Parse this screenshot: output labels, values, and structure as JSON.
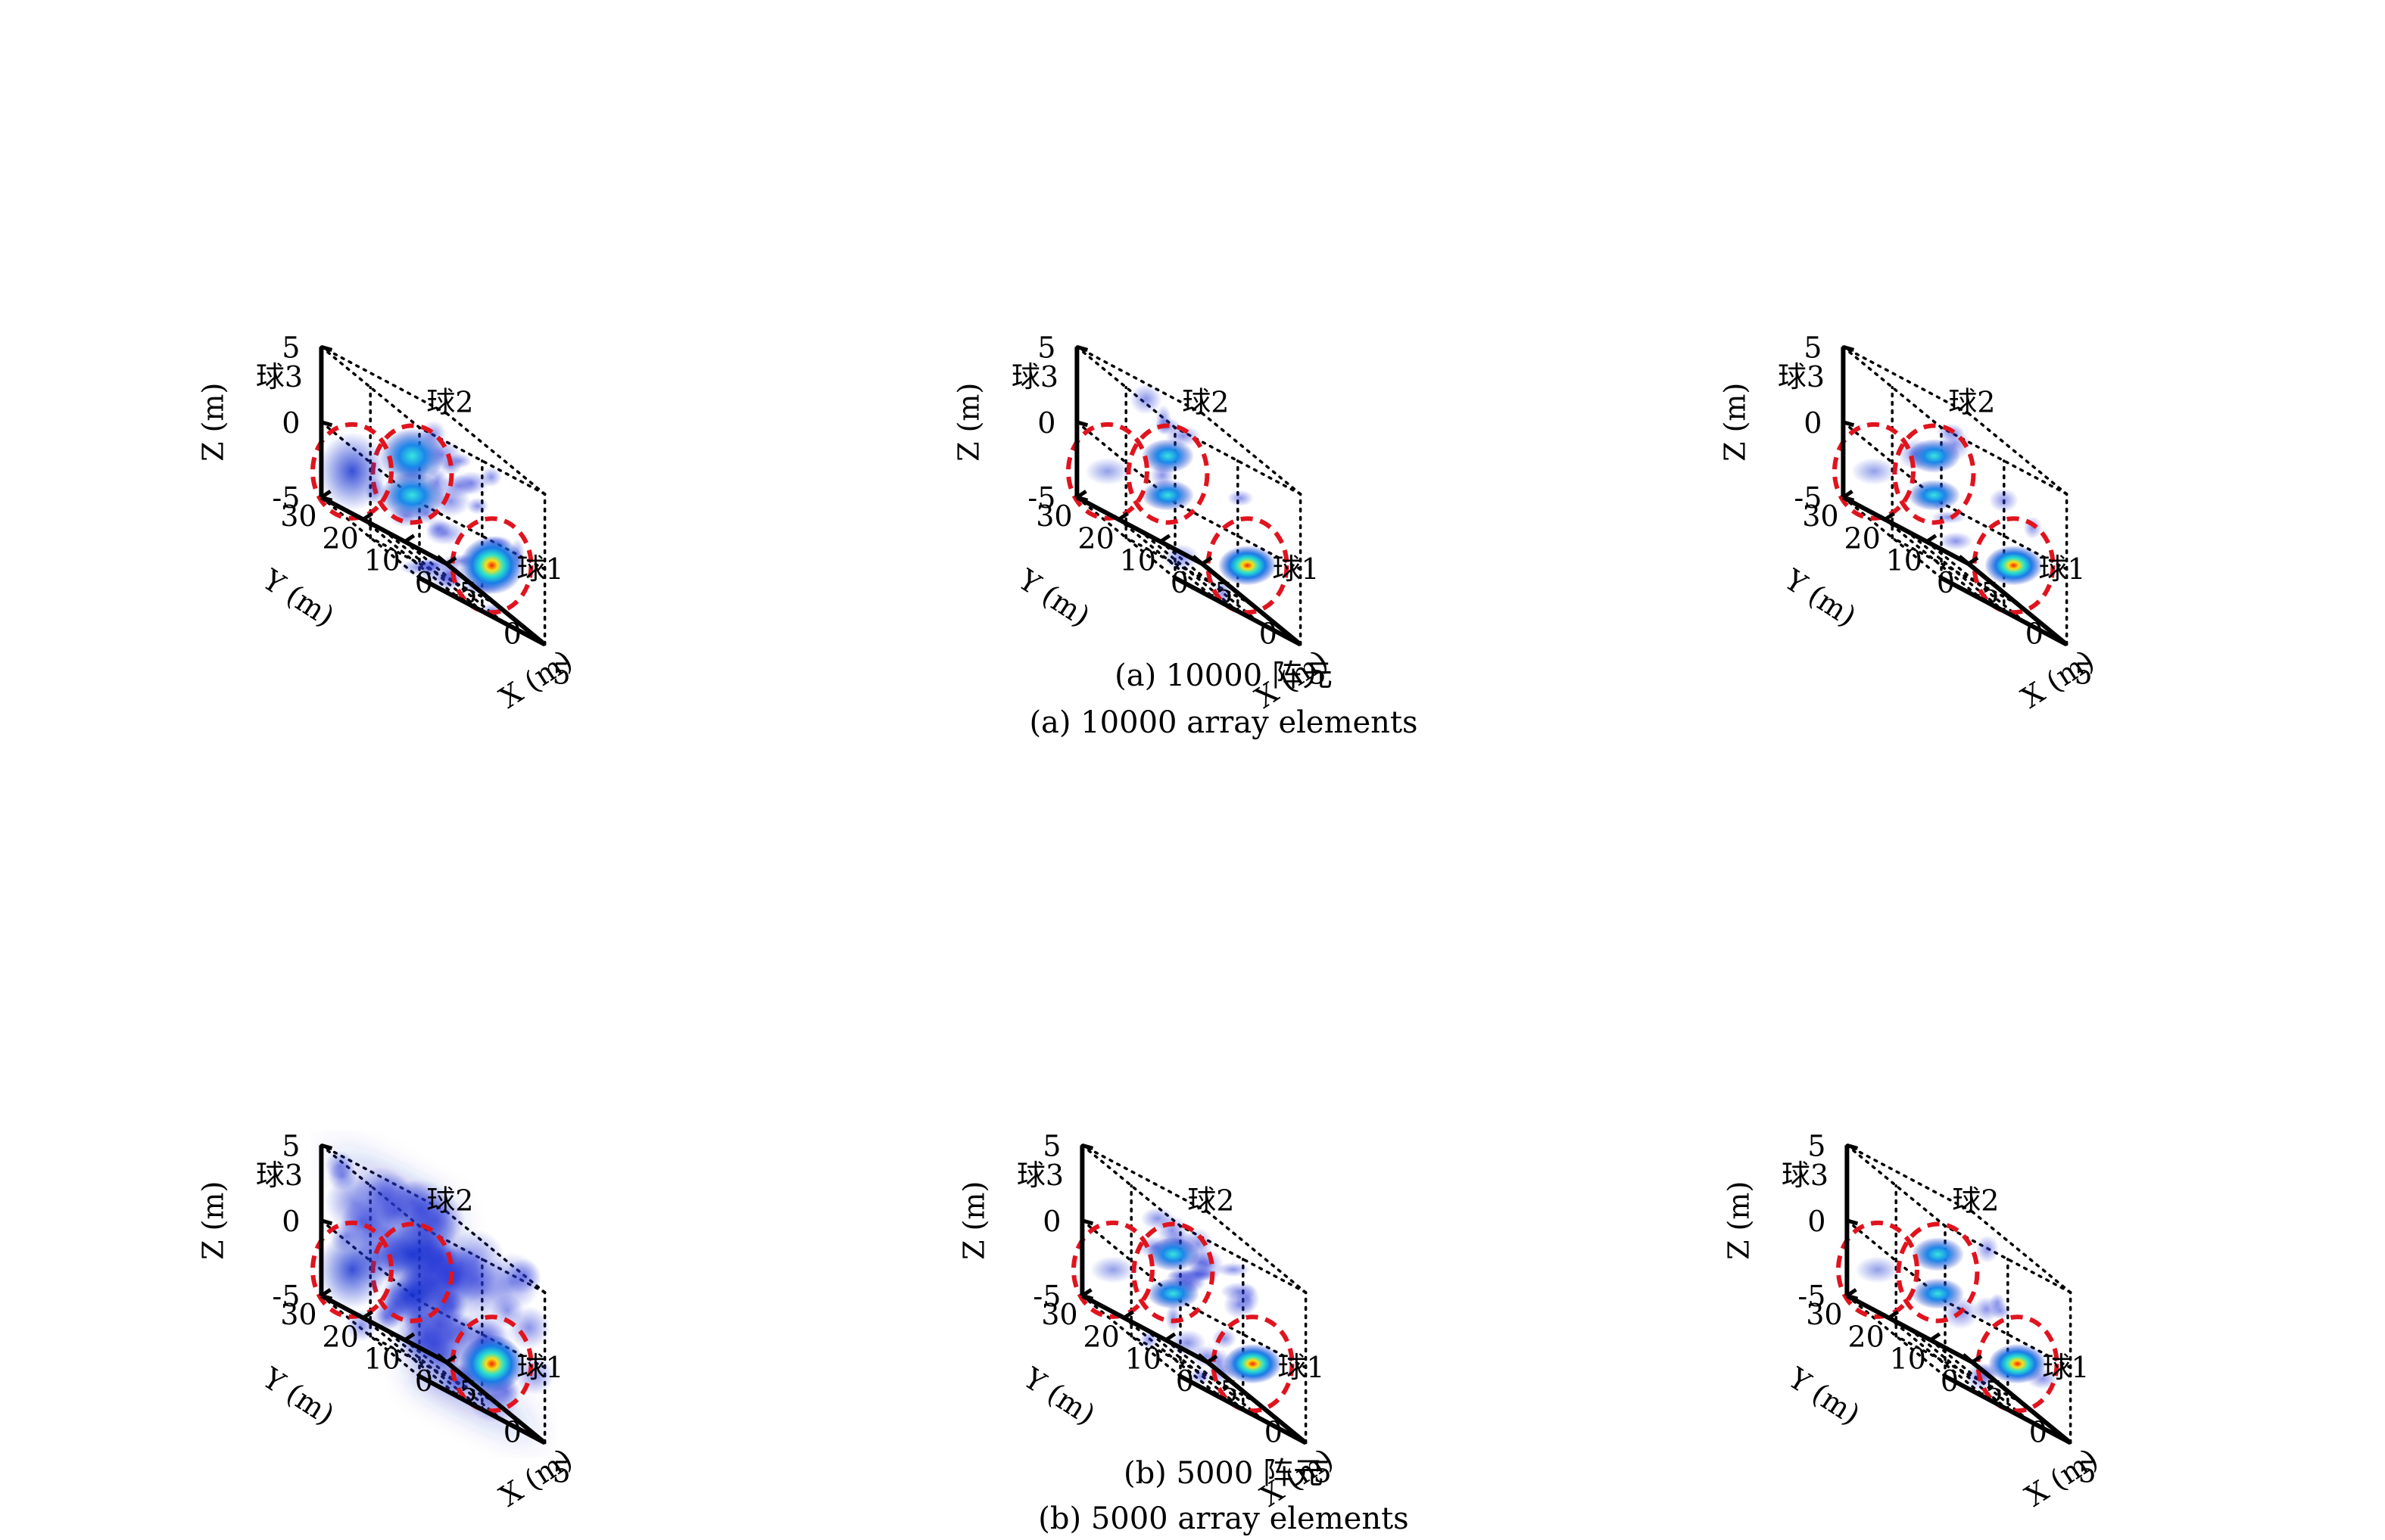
{
  "chart_data": {
    "type": "3d-volume-scatter",
    "axes": {
      "x_label": "X (m)",
      "y_label": "Y (m)",
      "z_label": "Z (m)",
      "x_ticks": [
        "-5",
        "0",
        "5"
      ],
      "y_ticks": [
        "0",
        "10",
        "20",
        "30"
      ],
      "z_ticks": [
        "-5",
        "0",
        "5"
      ],
      "xlim": [
        -5,
        5
      ],
      "ylim": [
        0,
        30
      ],
      "zlim": [
        -5,
        5
      ]
    },
    "targets": [
      {
        "label": "球1",
        "x": 3,
        "y": 8,
        "z": -2
      },
      {
        "label": "球2",
        "x": 0,
        "y": 20,
        "z": 0.7
      },
      {
        "label": "球3",
        "x": -4,
        "y": 25,
        "z": -2
      }
    ],
    "rows": [
      {
        "caption_cn": "(a) 10000 阵元",
        "caption_en": "(a) 10000 array elements",
        "panel_noise": [
          "moderate",
          "low",
          "low"
        ]
      },
      {
        "caption_cn": "(b) 5000 阵元",
        "caption_en": "(b) 5000 array elements",
        "panel_noise": [
          "high",
          "moderate",
          "low"
        ]
      }
    ],
    "colors": {
      "ring": "#e0141e",
      "volume_low": "#1a2fd0",
      "volume_high": "#ff2200"
    }
  }
}
